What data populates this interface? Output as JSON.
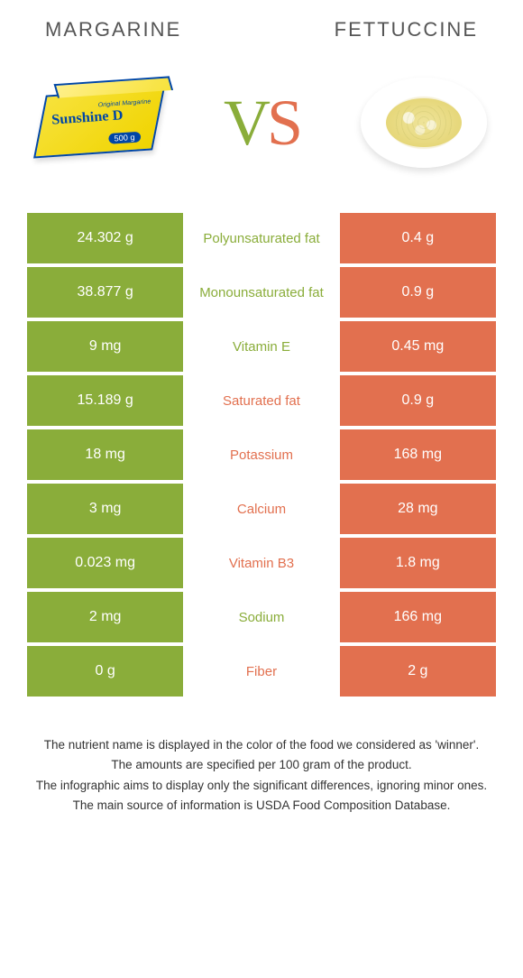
{
  "header": {
    "left_title": "Margarine",
    "right_title": "Fettuccine"
  },
  "vs": {
    "v": "V",
    "s": "S"
  },
  "margarine_graphic": {
    "brand": "Sunshine D",
    "sub": "Original Margarine",
    "weight": "500 g"
  },
  "colors": {
    "left": "#8aad3a",
    "right": "#e2704f",
    "background": "#ffffff",
    "text": "#333333"
  },
  "rows": [
    {
      "nutrient": "Polyunsaturated fat",
      "left": "24.302 g",
      "right": "0.4 g",
      "winner": "left"
    },
    {
      "nutrient": "Monounsaturated fat",
      "left": "38.877 g",
      "right": "0.9 g",
      "winner": "left"
    },
    {
      "nutrient": "Vitamin E",
      "left": "9 mg",
      "right": "0.45 mg",
      "winner": "left"
    },
    {
      "nutrient": "Saturated fat",
      "left": "15.189 g",
      "right": "0.9 g",
      "winner": "right"
    },
    {
      "nutrient": "Potassium",
      "left": "18 mg",
      "right": "168 mg",
      "winner": "right"
    },
    {
      "nutrient": "Calcium",
      "left": "3 mg",
      "right": "28 mg",
      "winner": "right"
    },
    {
      "nutrient": "Vitamin B3",
      "left": "0.023 mg",
      "right": "1.8 mg",
      "winner": "right"
    },
    {
      "nutrient": "Sodium",
      "left": "2 mg",
      "right": "166 mg",
      "winner": "left"
    },
    {
      "nutrient": "Fiber",
      "left": "0 g",
      "right": "2 g",
      "winner": "right"
    }
  ],
  "footer": {
    "line1": "The nutrient name is displayed in the color of the food we considered as 'winner'.",
    "line2": "The amounts are specified per 100 gram of the product.",
    "line3": "The infographic aims to display only the significant differences, ignoring minor ones.",
    "line4": "The main source of information is USDA Food Composition Database."
  }
}
